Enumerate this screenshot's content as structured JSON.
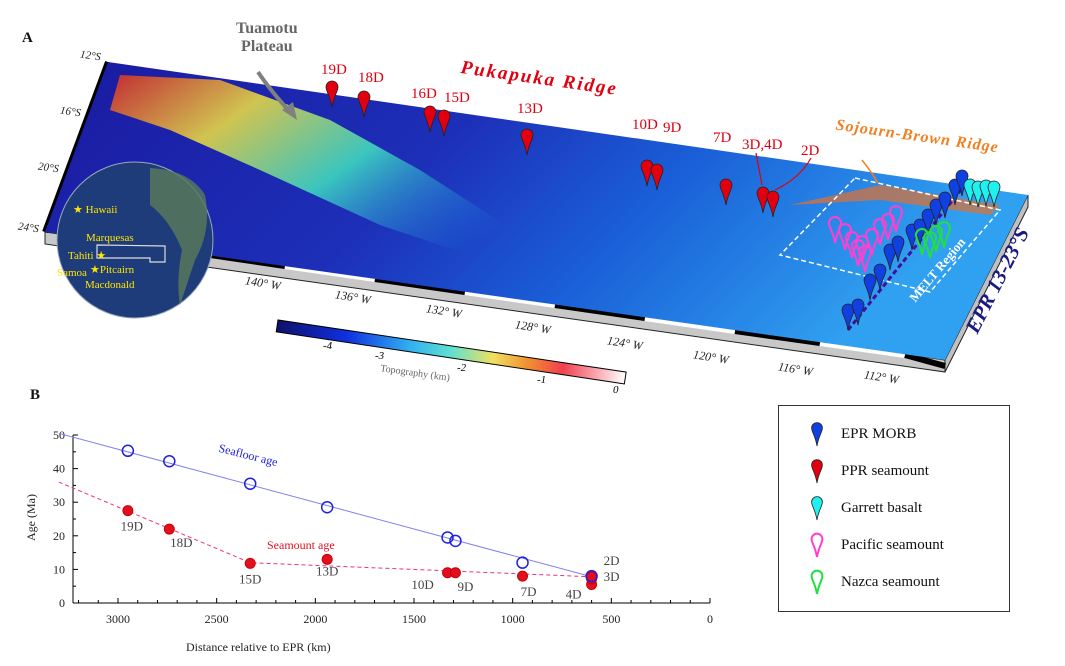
{
  "panel_a": {
    "letter": "A",
    "plateau_label_line1": "Tuamotu",
    "plateau_label_line2": "Plateau",
    "pukapuka_label": "Pukapuka  Ridge",
    "sojourn_label": "Sojourn-Brown Ridge",
    "epr_label": "EPR 13-23°S",
    "melt_label": "MELT Region",
    "latitudes": [
      "12°S",
      "16°S",
      "20°S",
      "24°S"
    ],
    "longitudes": [
      "140°  W",
      "136°  W",
      "132°  W",
      "128°  W",
      "124°  W",
      "120°  W",
      "116°  W",
      "112°  W"
    ],
    "sample_labels": [
      "19D",
      "18D",
      "16D",
      "15D",
      "13D",
      "10D",
      "9D",
      "7D",
      "3D,4D",
      "2D"
    ],
    "colorbar": {
      "title": "Topography  (km)",
      "ticks": [
        "-4",
        "-3",
        "-2",
        "-1",
        "0"
      ]
    },
    "globe_labels": [
      "Hawaii",
      "Marquesas",
      "Tahiti",
      "Samoa",
      "Pitcairn",
      "Macdonald"
    ]
  },
  "panel_b": {
    "letter": "B"
  },
  "legend": {
    "items": [
      {
        "label": "EPR MORB",
        "color": "#1040e0",
        "style": "filled"
      },
      {
        "label": "PPR seamount",
        "color": "#e00010",
        "style": "filled"
      },
      {
        "label": "Garrett basalt",
        "color": "#20f0f0",
        "style": "filled"
      },
      {
        "label": "Pacific seamount",
        "color": "#ff40d0",
        "style": "outline"
      },
      {
        "label": "Nazca seamount",
        "color": "#20e040",
        "style": "outline"
      }
    ]
  },
  "chart_data": {
    "type": "scatter",
    "xlabel": "Distance relative to EPR (km)",
    "ylabel": "Age (Ma)",
    "xlim": [
      3300,
      0
    ],
    "ylim": [
      0,
      50
    ],
    "xticks": [
      3000,
      2500,
      2000,
      1500,
      1000,
      500,
      0
    ],
    "yticks": [
      0,
      10,
      20,
      30,
      40,
      50
    ],
    "grid": false,
    "series": [
      {
        "name": "Seafloor age",
        "color": "#2020e0",
        "marker": "open-circle",
        "points": [
          [
            2950,
            45.3
          ],
          [
            2740,
            42.2
          ],
          [
            2330,
            35.5
          ],
          [
            1940,
            28.5
          ],
          [
            1330,
            19.5
          ],
          [
            1290,
            18.5
          ],
          [
            950,
            12.0
          ],
          [
            600,
            8.0
          ]
        ],
        "fit_line": [
          [
            3300,
            50.5
          ],
          [
            600,
            7.8
          ]
        ]
      },
      {
        "name": "Seamount age",
        "color": "#e01020",
        "marker": "filled-circle",
        "points": [
          [
            2950,
            27.5
          ],
          [
            2740,
            22.0
          ],
          [
            2330,
            11.8
          ],
          [
            1940,
            13.0
          ],
          [
            1330,
            9.0
          ],
          [
            1290,
            9.0
          ],
          [
            950,
            8.0
          ],
          [
            600,
            5.5
          ],
          [
            600,
            7.2
          ],
          [
            600,
            7.8
          ]
        ],
        "point_labels": [
          "19D",
          "18D",
          "15D",
          "13D",
          "10D",
          "9D",
          "7D",
          "4D",
          "3D",
          "2D"
        ],
        "fit_line": [
          [
            3300,
            36
          ],
          [
            2330,
            12
          ],
          [
            600,
            7.8
          ]
        ]
      }
    ]
  }
}
